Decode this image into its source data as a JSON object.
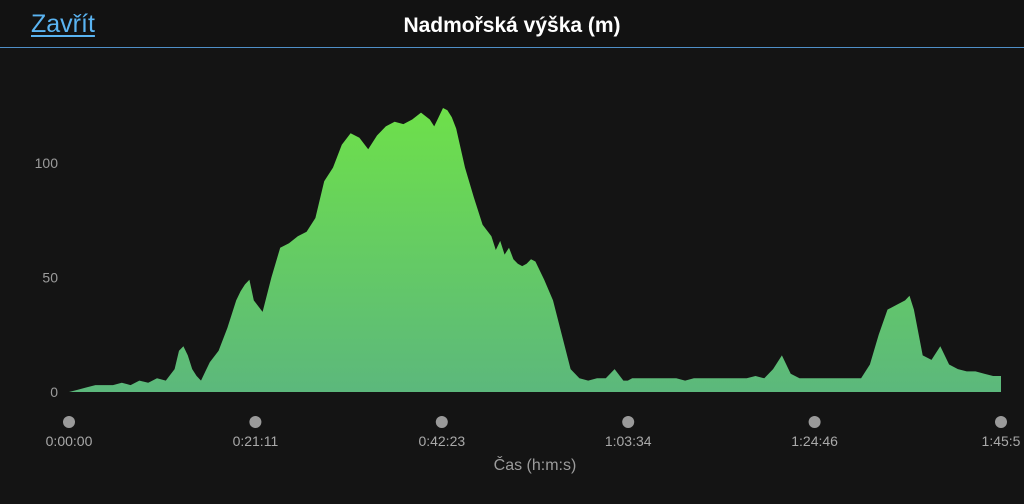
{
  "header": {
    "close_label": "Zavřít",
    "title": "Nadmořská výška (m)"
  },
  "colors": {
    "accent": "#5ab4f2",
    "fill_top": "#6ee04a",
    "fill_bottom": "#5cb87c",
    "background": "#141414",
    "marker": "#9a9a9a"
  },
  "chart_data": {
    "type": "area",
    "xlabel": "Čas (h:m:s)",
    "ylabel": "",
    "ylim": [
      0,
      130
    ],
    "yticks": [
      0,
      50,
      100
    ],
    "xticks": [
      "0:00:00",
      "0:21:11",
      "0:42:23",
      "1:03:34",
      "1:24:46",
      "1:45:5"
    ],
    "xlim_minutes": [
      0,
      105.9
    ],
    "grid": false,
    "x_minutes": [
      0.0,
      1.0,
      2.0,
      3.0,
      4.0,
      5.0,
      6.0,
      7.0,
      8.0,
      9.0,
      10.0,
      11.0,
      12.0,
      12.5,
      13.0,
      13.5,
      14.0,
      14.5,
      15.0,
      15.5,
      16.0,
      17.0,
      18.0,
      19.0,
      19.5,
      20.0,
      20.5,
      21.0,
      22.0,
      23.0,
      24.0,
      25.0,
      26.0,
      27.0,
      28.0,
      29.0,
      30.0,
      31.0,
      32.0,
      33.0,
      34.0,
      35.0,
      36.0,
      37.0,
      38.0,
      39.0,
      40.0,
      41.0,
      41.5,
      42.0,
      42.5,
      43.0,
      43.5,
      44.0,
      45.0,
      46.0,
      47.0,
      48.0,
      48.5,
      49.0,
      49.5,
      50.0,
      50.5,
      51.0,
      51.5,
      52.0,
      52.5,
      53.0,
      54.0,
      55.0,
      56.0,
      57.0,
      58.0,
      59.0,
      60.0,
      61.0,
      62.0,
      63.0,
      63.5,
      64.0,
      65.0,
      66.0,
      67.0,
      68.0,
      69.0,
      70.0,
      71.0,
      72.0,
      73.0,
      74.0,
      75.0,
      76.0,
      77.0,
      78.0,
      79.0,
      80.0,
      81.0,
      82.0,
      83.0,
      84.0,
      85.0,
      86.0,
      87.0,
      88.0,
      89.0,
      90.0,
      91.0,
      92.0,
      93.0,
      94.0,
      95.0,
      95.5,
      96.0,
      97.0,
      98.0,
      99.0,
      100.0,
      101.0,
      102.0,
      103.0,
      104.0,
      105.0,
      105.9
    ],
    "series": [
      {
        "values": [
          0,
          1,
          2,
          3,
          3,
          3,
          4,
          3,
          5,
          4,
          6,
          5,
          10,
          18,
          20,
          16,
          10,
          7,
          5,
          9,
          13,
          18,
          28,
          40,
          44,
          47,
          49,
          40,
          35,
          50,
          63,
          65,
          68,
          70,
          76,
          92,
          98,
          108,
          113,
          111,
          106,
          112,
          116,
          118,
          117,
          119,
          122,
          119,
          116,
          120,
          124,
          123,
          120,
          115,
          98,
          85,
          73,
          68,
          62,
          66,
          60,
          63,
          58,
          56,
          55,
          56,
          58,
          57,
          49,
          40,
          25,
          10,
          6,
          5,
          6,
          6,
          10,
          5,
          5,
          6,
          6,
          6,
          6,
          6,
          6,
          5,
          6,
          6,
          6,
          6,
          6,
          6,
          6,
          7,
          6,
          10,
          16,
          8,
          6,
          6,
          6,
          6,
          6,
          6,
          6,
          6,
          12,
          25,
          36,
          38,
          40,
          42,
          36,
          16,
          14,
          20,
          12,
          10,
          9,
          9,
          8,
          7,
          7
        ]
      }
    ]
  }
}
